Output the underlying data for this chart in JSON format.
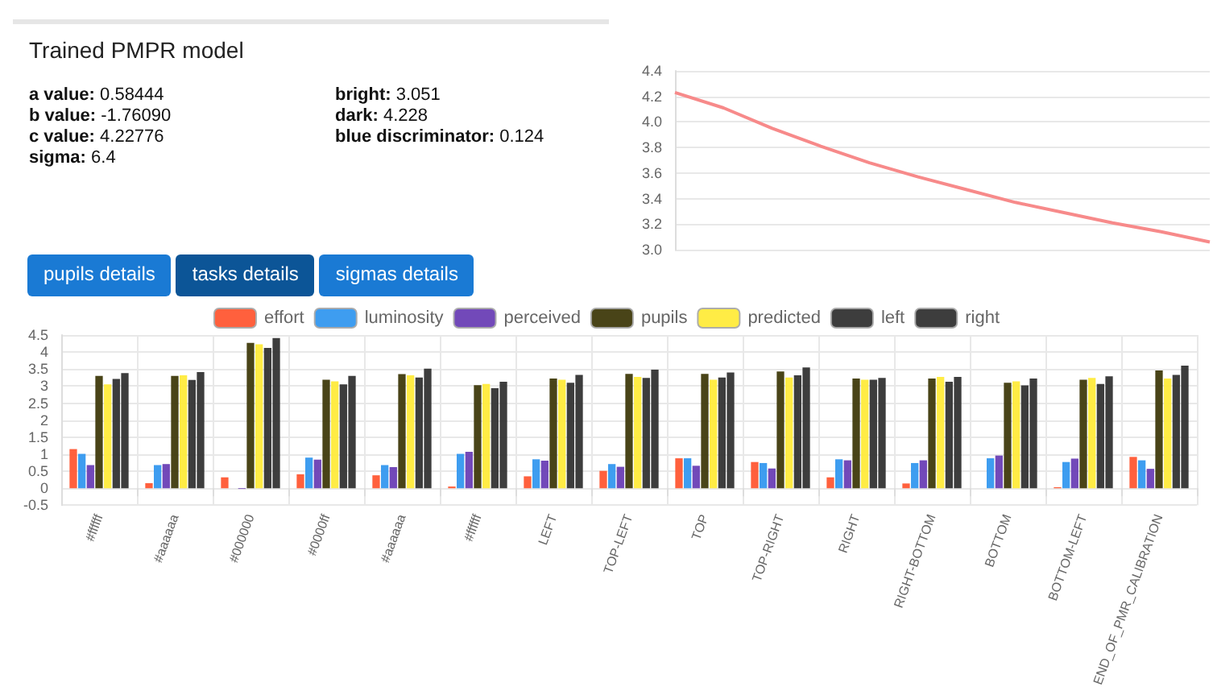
{
  "chart_data": [
    {
      "type": "other",
      "title": "Trained PMPR model",
      "annotations": [
        "a value: 0.58444",
        "b value: -1.76090",
        "c value: 4.22776",
        "sigma: 6.4",
        "bright: 3.051",
        "dark: 4.228",
        "blue discriminator: 0.124"
      ]
    },
    {
      "type": "other",
      "annotations": [
        "pupils details",
        "tasks details",
        "sigmas details"
      ],
      "colors": [
        "#1a7ad4",
        "#0c5597",
        "#1a7ad4"
      ]
    },
    {
      "type": "line",
      "categories": [
        null,
        null,
        null,
        null,
        null,
        null,
        null,
        null,
        null,
        null,
        null,
        null
      ],
      "series": [
        {
          "color": "#f78a8a",
          "values": [
            4.23,
            4.11,
            3.95,
            3.81,
            3.68,
            3.57,
            3.47,
            3.37,
            3.29,
            3.21,
            3.14,
            3.06
          ]
        }
      ],
      "ylim": [
        3.0,
        4.4
      ],
      "yticks": [
        {
          "value": 3.0,
          "label": "3.0"
        },
        {
          "value": 3.2,
          "label": "3.2"
        },
        {
          "value": 3.4,
          "label": "3.4"
        },
        {
          "value": 3.6,
          "label": "3.6"
        },
        {
          "value": 3.8,
          "label": "3.8"
        },
        {
          "value": 4.0,
          "label": "4.0"
        },
        {
          "value": 4.2,
          "label": "4.2"
        },
        {
          "value": 4.4,
          "label": "4.4"
        }
      ],
      "tick_labels": "y",
      "grid": "y",
      "marker": "none"
    },
    {
      "type": "bar",
      "categories": [
        "#ffffff",
        "#aaaaaa",
        "#000000",
        "#0000ff",
        "#aaaaaa",
        "#ffffff",
        "LEFT",
        "TOP-LEFT",
        "TOP",
        "TOP-RIGHT",
        "RIGHT",
        "RIGHT-BOTTOM",
        "BOTTOM",
        "BOTTOM-LEFT",
        "END_OF_PMR_CALIBRATION"
      ],
      "series": [
        {
          "name": "effort",
          "color": "#ff5733",
          "values": [
            1.15,
            0.15,
            0.32,
            0.41,
            0.38,
            0.05,
            0.35,
            0.51,
            0.88,
            0.77,
            0.32,
            0.14,
            null,
            0.03,
            0.92
          ]
        },
        {
          "name": "luminosity",
          "color": "#3498ef",
          "values": [
            1.01,
            0.68,
            null,
            0.9,
            0.68,
            1.01,
            0.85,
            0.71,
            0.88,
            0.74,
            0.85,
            0.74,
            0.88,
            0.77,
            0.82
          ]
        },
        {
          "name": "perceived",
          "color": "#6a3fb5",
          "values": [
            0.68,
            0.71,
            -0.02,
            0.84,
            0.62,
            1.07,
            0.81,
            0.63,
            0.66,
            0.58,
            0.82,
            0.82,
            0.96,
            0.87,
            0.57
          ]
        },
        {
          "name": "pupils",
          "color": "#3f3a0c",
          "values": [
            3.3,
            3.3,
            4.27,
            3.19,
            3.35,
            3.03,
            3.22,
            3.36,
            3.36,
            3.43,
            3.22,
            3.22,
            3.1,
            3.19,
            3.46
          ]
        },
        {
          "name": "predicted",
          "color": "#ffeb3b",
          "values": [
            3.05,
            3.32,
            4.23,
            3.14,
            3.32,
            3.06,
            3.19,
            3.27,
            3.19,
            3.25,
            3.19,
            3.27,
            3.14,
            3.24,
            3.22
          ]
        },
        {
          "name": "left",
          "color": "#333333",
          "values": [
            3.21,
            3.18,
            4.12,
            3.05,
            3.25,
            2.94,
            3.1,
            3.24,
            3.25,
            3.32,
            3.19,
            3.13,
            3.02,
            3.06,
            3.33
          ]
        },
        {
          "name": "right",
          "color": "#333333",
          "values": [
            3.38,
            3.41,
            4.41,
            3.3,
            3.51,
            3.13,
            3.33,
            3.48,
            3.4,
            3.55,
            3.24,
            3.27,
            3.22,
            3.29,
            3.6
          ]
        }
      ],
      "ylim": [
        -0.5,
        4.5
      ],
      "yticks": [
        -0.5,
        0,
        0.5,
        1.0,
        1.5,
        2.0,
        2.5,
        3.0,
        3.5,
        4.0,
        4.5
      ],
      "grid": true,
      "legend": "top"
    }
  ]
}
